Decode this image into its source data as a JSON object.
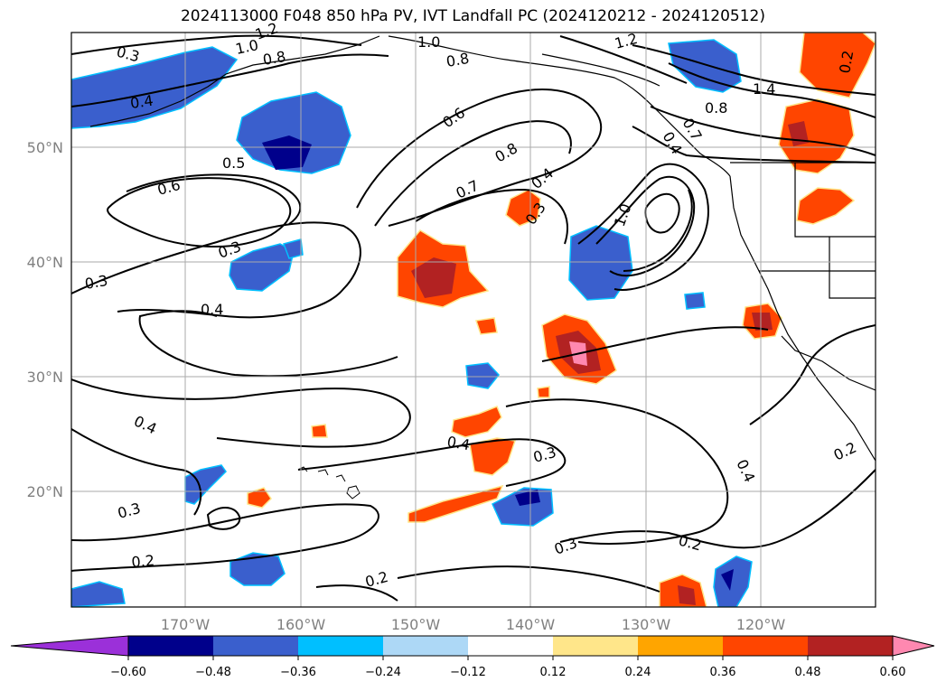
{
  "title": "2024113000 F048 850 hPa PV, IVT Landfall PC (2024120212 - 2024120512)",
  "latitude_labels": [
    "50°N",
    "40°N",
    "30°N",
    "20°N"
  ],
  "longitude_labels": [
    "170°W",
    "160°W",
    "150°W",
    "140°W",
    "130°W",
    "120°W"
  ],
  "colorbar": {
    "tick_labels": [
      "−0.60",
      "−0.48",
      "−0.36",
      "−0.24",
      "−0.12",
      "0.12",
      "0.24",
      "0.36",
      "0.48",
      "0.60"
    ],
    "colors": [
      "#9b30d9",
      "#00008b",
      "#3a5fcd",
      "#00bfff",
      "#add8f6",
      "#ffffff",
      "#ffe68a",
      "#ffa500",
      "#ff4500",
      "#b22222",
      "#ff88b0"
    ]
  },
  "contour_labels": [
    "0.3",
    "1.0",
    "1.2",
    "0.8",
    "1.0",
    "1.2",
    "1.4",
    "0.4",
    "0.8",
    "0.6",
    "0.5",
    "0.7",
    "0.8",
    "0.4",
    "0.3",
    "1.0",
    "0.8",
    "0.6",
    "0.3",
    "0.3",
    "0.4",
    "0.4",
    "0.4",
    "0.3",
    "0.4",
    "0.2",
    "0.3",
    "0.2",
    "0.3",
    "0.2",
    "0.2",
    "0.7",
    "0.4",
    "0.2"
  ]
}
